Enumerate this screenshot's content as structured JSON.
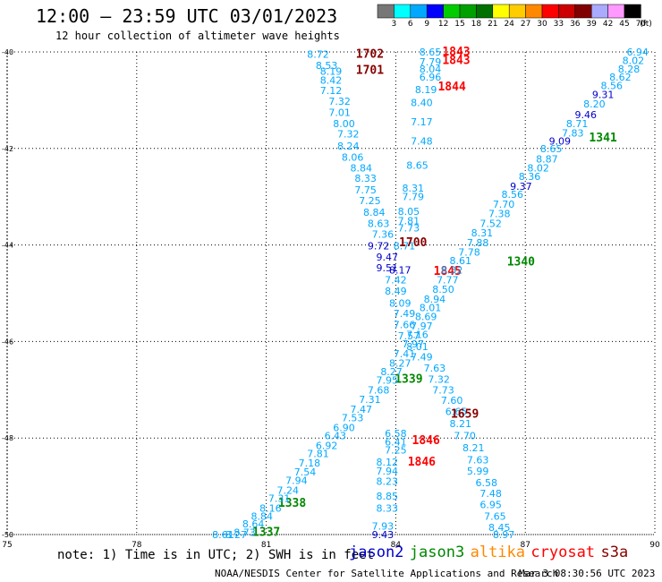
{
  "header": {
    "title": "12:00 — 23:59 UTC 03/01/2023",
    "subtitle": "12 hour collection of altimeter wave heights"
  },
  "colorbar": {
    "labels": [
      "3",
      "6",
      "9",
      "12",
      "15",
      "18",
      "21",
      "24",
      "27",
      "30",
      "33",
      "36",
      "39",
      "42",
      "45",
      "70"
    ],
    "unit": "(ft)",
    "colors": [
      "#777777",
      "#00ffff",
      "#00a8ff",
      "#0000ff",
      "#00cc00",
      "#00a000",
      "#007000",
      "#ffff00",
      "#ffcc00",
      "#ff8800",
      "#ff0000",
      "#cc0000",
      "#800000",
      "#aaaaff",
      "#ff99ff",
      "#000000"
    ]
  },
  "footer": {
    "note": "note: 1) Time is in UTC; 2) SWH is in feet",
    "satellites": [
      {
        "name": "jason2",
        "color": "#0000cc"
      },
      {
        "name": "jason3",
        "color": "#008800"
      },
      {
        "name": "altika",
        "color": "#ff8800"
      },
      {
        "name": "cryosat",
        "color": "#ff0000"
      },
      {
        "name": "s3a",
        "color": "#880000"
      }
    ],
    "credit": "NOAA/NESDIS Center for Satellite Applications and Research",
    "timestamp": "Mar  3 08:30:56 UTC 2023"
  },
  "chart_data": {
    "type": "scatter",
    "x_axis": {
      "range": [
        -75,
        -90
      ],
      "ticks": [
        "75",
        "78",
        "81",
        "84",
        "87",
        "90"
      ]
    },
    "y_axis": {
      "range": [
        -40,
        -50
      ],
      "ticks": [
        "40",
        "42",
        "44",
        "46",
        "48",
        "50"
      ]
    },
    "grid": true,
    "palette": {
      "c": "#00a8ff",
      "b": "#0000cc",
      "g": "#008800",
      "r": "#ff0000",
      "d": "#880000"
    },
    "labels": [
      {
        "lon": -82.2,
        "lat": -40.05,
        "text": "8.72",
        "c": "c"
      },
      {
        "lon": -83.4,
        "lat": -40.05,
        "text": "1702",
        "c": "d"
      },
      {
        "lon": -82.4,
        "lat": -40.28,
        "text": "8.53",
        "c": "c"
      },
      {
        "lon": -82.5,
        "lat": -40.4,
        "text": "8.19",
        "c": "c"
      },
      {
        "lon": -83.4,
        "lat": -40.38,
        "text": "1701",
        "c": "d"
      },
      {
        "lon": -82.5,
        "lat": -40.58,
        "text": "8.42",
        "c": "c"
      },
      {
        "lon": -82.5,
        "lat": -40.8,
        "text": "7.12",
        "c": "c"
      },
      {
        "lon": -82.7,
        "lat": -41.02,
        "text": "7.32",
        "c": "c"
      },
      {
        "lon": -82.7,
        "lat": -41.25,
        "text": "7.01",
        "c": "c"
      },
      {
        "lon": -82.8,
        "lat": -41.48,
        "text": "8.00",
        "c": "c"
      },
      {
        "lon": -82.9,
        "lat": -41.7,
        "text": "7.32",
        "c": "c"
      },
      {
        "lon": -82.9,
        "lat": -41.95,
        "text": "8.24",
        "c": "c"
      },
      {
        "lon": -83.0,
        "lat": -42.18,
        "text": "8.06",
        "c": "c"
      },
      {
        "lon": -83.2,
        "lat": -42.4,
        "text": "8.84",
        "c": "c"
      },
      {
        "lon": -83.3,
        "lat": -42.62,
        "text": "8.33",
        "c": "c"
      },
      {
        "lon": -83.3,
        "lat": -42.86,
        "text": "7.75",
        "c": "c"
      },
      {
        "lon": -83.4,
        "lat": -43.08,
        "text": "7.25",
        "c": "c"
      },
      {
        "lon": -83.5,
        "lat": -43.32,
        "text": "8.84",
        "c": "c"
      },
      {
        "lon": -83.6,
        "lat": -43.55,
        "text": "8.63",
        "c": "c"
      },
      {
        "lon": -83.7,
        "lat": -43.78,
        "text": "7.36",
        "c": "c"
      },
      {
        "lon": -83.6,
        "lat": -44.02,
        "text": "9.72",
        "c": "b"
      },
      {
        "lon": -83.8,
        "lat": -44.25,
        "text": "9.47",
        "c": "b"
      },
      {
        "lon": -83.8,
        "lat": -44.47,
        "text": "9.51",
        "c": "b"
      },
      {
        "lon": -84.0,
        "lat": -44.72,
        "text": "7.42",
        "c": "c"
      },
      {
        "lon": -84.0,
        "lat": -44.95,
        "text": "8.49",
        "c": "c"
      },
      {
        "lon": -84.1,
        "lat": -45.2,
        "text": "8.09",
        "c": "c"
      },
      {
        "lon": -84.2,
        "lat": -45.42,
        "text": "7.49",
        "c": "c"
      },
      {
        "lon": -84.2,
        "lat": -45.65,
        "text": "7.66",
        "c": "c"
      },
      {
        "lon": -84.3,
        "lat": -45.88,
        "text": "7.57",
        "c": "c"
      },
      {
        "lon": -84.5,
        "lat": -46.1,
        "text": "8.01",
        "c": "c"
      },
      {
        "lon": -84.6,
        "lat": -46.32,
        "text": "7.49",
        "c": "c"
      },
      {
        "lon": -84.9,
        "lat": -46.55,
        "text": "7.63",
        "c": "c"
      },
      {
        "lon": -85.0,
        "lat": -46.78,
        "text": "7.32",
        "c": "c"
      },
      {
        "lon": -85.1,
        "lat": -47.0,
        "text": "7.73",
        "c": "c"
      },
      {
        "lon": -85.3,
        "lat": -47.22,
        "text": "7.60",
        "c": "c"
      },
      {
        "lon": -85.4,
        "lat": -47.45,
        "text": "6.65",
        "c": "c"
      },
      {
        "lon": -85.5,
        "lat": -47.7,
        "text": "8.21",
        "c": "c"
      },
      {
        "lon": -85.6,
        "lat": -47.95,
        "text": "7.70",
        "c": "c"
      },
      {
        "lon": -85.8,
        "lat": -48.2,
        "text": "8.21",
        "c": "c"
      },
      {
        "lon": -85.9,
        "lat": -48.45,
        "text": "7.63",
        "c": "c"
      },
      {
        "lon": -85.9,
        "lat": -48.68,
        "text": "5.99",
        "c": "c"
      },
      {
        "lon": -86.1,
        "lat": -48.92,
        "text": "6.58",
        "c": "c"
      },
      {
        "lon": -86.2,
        "lat": -49.15,
        "text": "7.48",
        "c": "c"
      },
      {
        "lon": -86.2,
        "lat": -49.38,
        "text": "6.95",
        "c": "c"
      },
      {
        "lon": -86.3,
        "lat": -49.62,
        "text": "7.65",
        "c": "c"
      },
      {
        "lon": -86.4,
        "lat": -49.85,
        "text": "8.45",
        "c": "c"
      },
      {
        "lon": -86.5,
        "lat": -50.0,
        "text": "8.97",
        "c": "c"
      },
      {
        "lon": -85.6,
        "lat": -47.5,
        "text": "1659",
        "c": "d"
      },
      {
        "lon": -84.8,
        "lat": -40.0,
        "text": "8.65",
        "c": "c"
      },
      {
        "lon": -84.8,
        "lat": -40.2,
        "text": "7.79",
        "c": "c"
      },
      {
        "lon": -84.8,
        "lat": -40.35,
        "text": "8.04",
        "c": "c"
      },
      {
        "lon": -84.8,
        "lat": -40.52,
        "text": "6.96",
        "c": "c"
      },
      {
        "lon": -84.7,
        "lat": -40.78,
        "text": "8.19",
        "c": "c"
      },
      {
        "lon": -84.6,
        "lat": -41.05,
        "text": "8.40",
        "c": "c"
      },
      {
        "lon": -84.6,
        "lat": -41.45,
        "text": "7.17",
        "c": "c"
      },
      {
        "lon": -84.6,
        "lat": -41.85,
        "text": "7.48",
        "c": "c"
      },
      {
        "lon": -84.5,
        "lat": -42.35,
        "text": "8.65",
        "c": "c"
      },
      {
        "lon": -84.4,
        "lat": -42.82,
        "text": "8.31",
        "c": "c"
      },
      {
        "lon": -84.4,
        "lat": -43.0,
        "text": "7.79",
        "c": "c"
      },
      {
        "lon": -84.3,
        "lat": -43.3,
        "text": "8.05",
        "c": "c"
      },
      {
        "lon": -84.3,
        "lat": -43.5,
        "text": "7.81",
        "c": "c"
      },
      {
        "lon": -84.3,
        "lat": -43.65,
        "text": "7.73",
        "c": "c"
      },
      {
        "lon": -84.2,
        "lat": -44.02,
        "text": "8.71",
        "c": "c"
      },
      {
        "lon": -84.1,
        "lat": -44.52,
        "text": "8.17",
        "c": "b"
      },
      {
        "lon": -84.4,
        "lat": -43.95,
        "text": "1700",
        "c": "d"
      },
      {
        "lon": -85.4,
        "lat": -40.0,
        "text": "1843",
        "c": "r"
      },
      {
        "lon": -85.4,
        "lat": -40.18,
        "text": "1843",
        "c": "r"
      },
      {
        "lon": -85.3,
        "lat": -40.72,
        "text": "1844",
        "c": "r"
      },
      {
        "lon": -85.2,
        "lat": -44.55,
        "text": "1845",
        "c": "r"
      },
      {
        "lon": -84.7,
        "lat": -48.05,
        "text": "1846",
        "c": "r"
      },
      {
        "lon": -84.6,
        "lat": -48.5,
        "text": "1846",
        "c": "r"
      },
      {
        "lon": -84.3,
        "lat": -46.78,
        "text": "1339",
        "c": "g"
      },
      {
        "lon": -81.6,
        "lat": -49.35,
        "text": "1338",
        "c": "g"
      },
      {
        "lon": -81.0,
        "lat": -49.95,
        "text": "1337",
        "c": "g"
      },
      {
        "lon": -86.9,
        "lat": -44.35,
        "text": "1340",
        "c": "g"
      },
      {
        "lon": -88.8,
        "lat": -41.78,
        "text": "1341",
        "c": "g"
      },
      {
        "lon": -89.6,
        "lat": -40.0,
        "text": "6.94",
        "c": "c"
      },
      {
        "lon": -89.5,
        "lat": -40.18,
        "text": "8.02",
        "c": "c"
      },
      {
        "lon": -89.4,
        "lat": -40.35,
        "text": "8.28",
        "c": "c"
      },
      {
        "lon": -89.2,
        "lat": -40.52,
        "text": "8.62",
        "c": "c"
      },
      {
        "lon": -89.0,
        "lat": -40.7,
        "text": "8.56",
        "c": "c"
      },
      {
        "lon": -88.8,
        "lat": -40.88,
        "text": "9.31",
        "c": "b"
      },
      {
        "lon": -88.6,
        "lat": -41.08,
        "text": "8.20",
        "c": "c"
      },
      {
        "lon": -88.4,
        "lat": -41.3,
        "text": "9.46",
        "c": "b"
      },
      {
        "lon": -88.2,
        "lat": -41.48,
        "text": "8.71",
        "c": "c"
      },
      {
        "lon": -88.1,
        "lat": -41.68,
        "text": "7.83",
        "c": "c"
      },
      {
        "lon": -87.8,
        "lat": -41.85,
        "text": "9.09",
        "c": "b"
      },
      {
        "lon": -87.6,
        "lat": -42.0,
        "text": "8.65",
        "c": "c"
      },
      {
        "lon": -87.5,
        "lat": -42.22,
        "text": "8.87",
        "c": "c"
      },
      {
        "lon": -87.3,
        "lat": -42.4,
        "text": "8.02",
        "c": "c"
      },
      {
        "lon": -87.1,
        "lat": -42.58,
        "text": "8.36",
        "c": "c"
      },
      {
        "lon": -86.9,
        "lat": -42.78,
        "text": "9.37",
        "c": "b"
      },
      {
        "lon": -86.7,
        "lat": -42.95,
        "text": "8.56",
        "c": "c"
      },
      {
        "lon": -86.5,
        "lat": -43.15,
        "text": "7.70",
        "c": "c"
      },
      {
        "lon": -86.4,
        "lat": -43.35,
        "text": "7.38",
        "c": "c"
      },
      {
        "lon": -86.2,
        "lat": -43.55,
        "text": "7.52",
        "c": "c"
      },
      {
        "lon": -86.0,
        "lat": -43.75,
        "text": "8.31",
        "c": "c"
      },
      {
        "lon": -85.9,
        "lat": -43.95,
        "text": "7.88",
        "c": "c"
      },
      {
        "lon": -85.7,
        "lat": -44.15,
        "text": "7.78",
        "c": "c"
      },
      {
        "lon": -85.5,
        "lat": -44.32,
        "text": "8.61",
        "c": "c"
      },
      {
        "lon": -85.3,
        "lat": -44.52,
        "text": "8.32",
        "c": "c"
      },
      {
        "lon": -85.2,
        "lat": -44.72,
        "text": "7.77",
        "c": "c"
      },
      {
        "lon": -85.1,
        "lat": -44.92,
        "text": "8.50",
        "c": "c"
      },
      {
        "lon": -84.9,
        "lat": -45.12,
        "text": "8.94",
        "c": "c"
      },
      {
        "lon": -84.8,
        "lat": -45.3,
        "text": "8.01",
        "c": "c"
      },
      {
        "lon": -84.7,
        "lat": -45.48,
        "text": "8.69",
        "c": "c"
      },
      {
        "lon": -84.6,
        "lat": -45.68,
        "text": "7.97",
        "c": "c"
      },
      {
        "lon": -84.5,
        "lat": -45.85,
        "text": "7.16",
        "c": "c"
      },
      {
        "lon": -84.4,
        "lat": -46.05,
        "text": "7.97",
        "c": "c"
      },
      {
        "lon": -84.2,
        "lat": -46.25,
        "text": "7.41",
        "c": "c"
      },
      {
        "lon": -84.1,
        "lat": -46.45,
        "text": "8.27",
        "c": "c"
      },
      {
        "lon": -83.9,
        "lat": -46.62,
        "text": "8.27",
        "c": "c"
      },
      {
        "lon": -83.8,
        "lat": -46.8,
        "text": "7.95",
        "c": "c"
      },
      {
        "lon": -83.6,
        "lat": -47.0,
        "text": "7.68",
        "c": "c"
      },
      {
        "lon": -83.4,
        "lat": -47.2,
        "text": "7.31",
        "c": "c"
      },
      {
        "lon": -83.2,
        "lat": -47.4,
        "text": "7.47",
        "c": "c"
      },
      {
        "lon": -83.0,
        "lat": -47.58,
        "text": "7.53",
        "c": "c"
      },
      {
        "lon": -82.8,
        "lat": -47.78,
        "text": "6.90",
        "c": "c"
      },
      {
        "lon": -82.6,
        "lat": -47.95,
        "text": "6.43",
        "c": "c"
      },
      {
        "lon": -82.4,
        "lat": -48.15,
        "text": "6.92",
        "c": "c"
      },
      {
        "lon": -82.2,
        "lat": -48.32,
        "text": "7.81",
        "c": "c"
      },
      {
        "lon": -82.0,
        "lat": -48.52,
        "text": "7.18",
        "c": "c"
      },
      {
        "lon": -81.9,
        "lat": -48.7,
        "text": "7.54",
        "c": "c"
      },
      {
        "lon": -81.7,
        "lat": -48.88,
        "text": "7.94",
        "c": "c"
      },
      {
        "lon": -81.5,
        "lat": -49.08,
        "text": "7.24",
        "c": "c"
      },
      {
        "lon": -81.3,
        "lat": -49.25,
        "text": "7.31",
        "c": "c"
      },
      {
        "lon": -81.1,
        "lat": -49.45,
        "text": "8.16",
        "c": "c"
      },
      {
        "lon": -80.9,
        "lat": -49.62,
        "text": "8.84",
        "c": "c"
      },
      {
        "lon": -80.7,
        "lat": -49.78,
        "text": "8.64",
        "c": "c"
      },
      {
        "lon": -80.5,
        "lat": -49.95,
        "text": "8.73",
        "c": "c"
      },
      {
        "lon": -80.3,
        "lat": -50.0,
        "text": "8.27",
        "c": "c"
      },
      {
        "lon": -80.0,
        "lat": -50.0,
        "text": "8.61",
        "c": "c"
      },
      {
        "lon": -84.0,
        "lat": -47.9,
        "text": "6.58",
        "c": "c"
      },
      {
        "lon": -84.0,
        "lat": -48.08,
        "text": "6.41",
        "c": "c"
      },
      {
        "lon": -84.0,
        "lat": -48.25,
        "text": "7.25",
        "c": "c"
      },
      {
        "lon": -83.8,
        "lat": -48.5,
        "text": "8.12",
        "c": "c"
      },
      {
        "lon": -83.8,
        "lat": -48.68,
        "text": "7.94",
        "c": "c"
      },
      {
        "lon": -83.8,
        "lat": -48.9,
        "text": "8.23",
        "c": "c"
      },
      {
        "lon": -83.8,
        "lat": -49.2,
        "text": "8.85",
        "c": "c"
      },
      {
        "lon": -83.8,
        "lat": -49.45,
        "text": "8.33",
        "c": "c"
      },
      {
        "lon": -83.7,
        "lat": -49.82,
        "text": "7.93",
        "c": "c"
      },
      {
        "lon": -83.7,
        "lat": -50.0,
        "text": "9.43",
        "c": "b"
      }
    ]
  }
}
